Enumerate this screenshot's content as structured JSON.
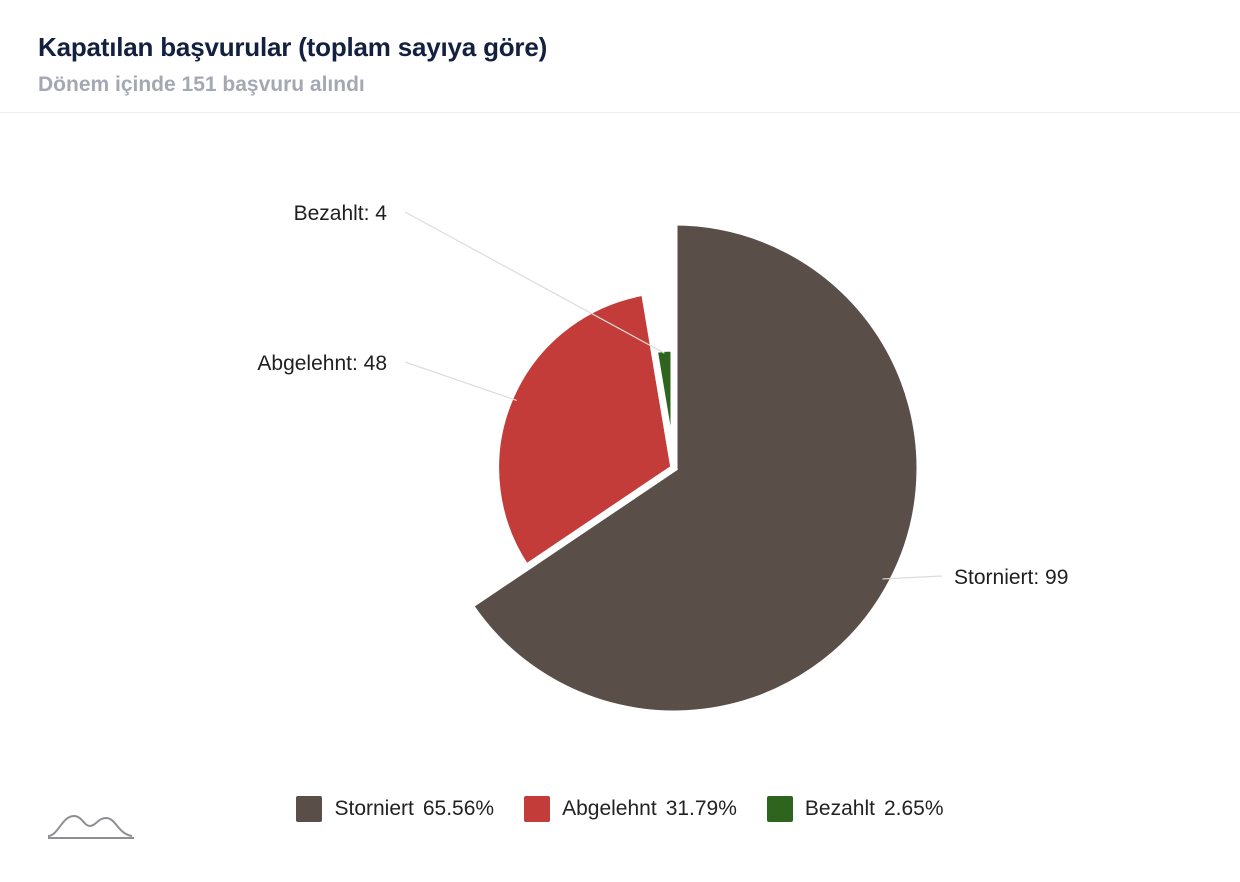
{
  "header": {
    "title": "Kapatılan başvurular (toplam sayıya göre)",
    "subtitle": "Dönem içinde 151 başvuru alındı"
  },
  "chart_data": {
    "type": "pie",
    "total": 151,
    "slices": [
      {
        "name": "Storniert",
        "value": 99,
        "percent": "65.56%",
        "label": "Storniert: 99",
        "color": "#5a4f48"
      },
      {
        "name": "Abgelehnt",
        "value": 48,
        "percent": "31.79%",
        "label": "Abgelehnt: 48",
        "color": "#c33c3a"
      },
      {
        "name": "Bezahlt",
        "value": 4,
        "percent": "2.65%",
        "label": "Bezahlt: 4",
        "color": "#2f641e"
      }
    ],
    "legend_position": "bottom"
  }
}
